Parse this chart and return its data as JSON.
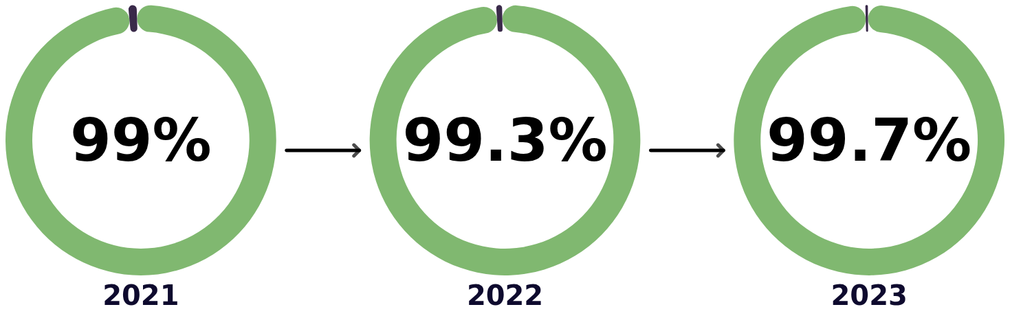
{
  "chart_data": [
    {
      "type": "donut",
      "title": "2021",
      "categories": [
        null,
        null
      ],
      "values": [
        99,
        1
      ],
      "colors": [
        "#80b870",
        "#3a2a4a"
      ],
      "value_labels": [
        "99%",
        null
      ]
    },
    {
      "type": "donut",
      "title": "2022",
      "categories": [
        null,
        null
      ],
      "values": [
        99.3,
        0.7
      ],
      "colors": [
        "#80b870",
        "#3a2a4a"
      ],
      "value_labels": [
        "99.3%",
        null
      ]
    },
    {
      "type": "donut",
      "title": "2023",
      "categories": [
        null,
        null
      ],
      "values": [
        99.7,
        0.3
      ],
      "colors": [
        "#80b870",
        "#3a2a4a"
      ],
      "value_labels": [
        "99.7%",
        null
      ]
    }
  ]
}
